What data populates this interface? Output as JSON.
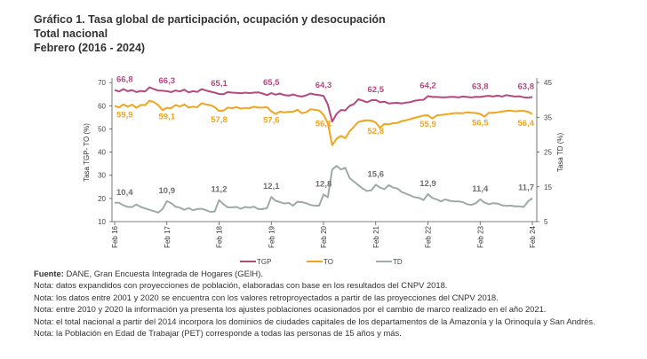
{
  "title": {
    "line1": "Gráfico 1. Tasa global de participación, ocupación y desocupación",
    "line2": "Total nacional",
    "line3": "Febrero (2016 - 2024)"
  },
  "chart_data": {
    "type": "line",
    "x_tick_labels": [
      "Feb 16",
      "Feb 17",
      "Feb 18",
      "Feb 19",
      "Feb 20",
      "Feb 21",
      "Feb 22",
      "Feb 23",
      "Feb 24"
    ],
    "x_start": "2016-02",
    "x_end": "2024-02",
    "frequency": "monthly",
    "ylabel": "Tasa TGP- TO (%)",
    "y2label": "Tasa TD (%)",
    "ylim": [
      10,
      72
    ],
    "yticks": [
      10,
      20,
      30,
      40,
      50,
      60,
      70
    ],
    "y2lim": [
      5,
      46.3
    ],
    "y2ticks": [
      5,
      15,
      25,
      35,
      45
    ],
    "grid": false,
    "legend": "bottom",
    "series": [
      {
        "name": "TGP",
        "axis": "left",
        "color": "#b5487f",
        "labels": [
          "66,8",
          "66,3",
          "65,1",
          "65,5",
          "64,3",
          "62,5",
          "64,2",
          "63,8",
          "63,8"
        ],
        "values": [
          66.8,
          66.2,
          67.2,
          66.3,
          66.8,
          65.9,
          66.4,
          66.2,
          68.0,
          67.2,
          66.6,
          66.5,
          66.3,
          65.9,
          66.6,
          66.2,
          67.0,
          65.8,
          66.3,
          66.0,
          67.2,
          66.6,
          66.1,
          65.7,
          65.1,
          65.0,
          65.9,
          65.7,
          65.6,
          65.4,
          65.7,
          65.5,
          65.7,
          65.8,
          65.3,
          64.6,
          65.5,
          64.8,
          65.3,
          64.6,
          64.4,
          64.9,
          64.3,
          64.0,
          64.5,
          65.3,
          64.9,
          64.6,
          64.3,
          60.5,
          53.2,
          56.5,
          58.2,
          58.0,
          60.0,
          60.8,
          62.8,
          62.2,
          61.5,
          62.4,
          62.5,
          61.5,
          61.8,
          61.0,
          61.2,
          61.3,
          61.0,
          61.4,
          61.6,
          62.2,
          62.5,
          62.6,
          64.2,
          63.8,
          63.9,
          63.7,
          63.7,
          63.8,
          63.9,
          63.6,
          64.0,
          63.8,
          63.6,
          63.9,
          63.8,
          64.1,
          64.3,
          64.0,
          64.4,
          64.0,
          64.6,
          64.3,
          64.0,
          64.1,
          63.7,
          63.5,
          63.8
        ]
      },
      {
        "name": "TO",
        "axis": "left",
        "color": "#f0a51c",
        "labels": [
          "59,9",
          "59,1",
          "57,8",
          "57,6",
          "56,1",
          "52,8",
          "55,9",
          "56,5",
          "56,4"
        ],
        "values": [
          59.9,
          59.3,
          60.6,
          59.6,
          60.5,
          59.1,
          60.4,
          60.3,
          62.2,
          61.6,
          60.3,
          58.2,
          59.1,
          59.0,
          60.3,
          59.7,
          60.6,
          59.2,
          59.6,
          59.4,
          61.1,
          60.6,
          60.3,
          59.4,
          57.8,
          57.9,
          59.2,
          59.0,
          59.4,
          58.8,
          59.1,
          59.0,
          59.6,
          59.2,
          59.2,
          59.4,
          57.6,
          56.5,
          57.5,
          57.2,
          57.4,
          57.4,
          58.3,
          56.8,
          57.2,
          58.5,
          58.3,
          58.0,
          56.1,
          52.5,
          43.0,
          45.8,
          47.0,
          46.0,
          49.0,
          51.0,
          53.0,
          53.5,
          53.8,
          53.6,
          52.8,
          50.5,
          52.2,
          52.0,
          52.5,
          52.6,
          53.4,
          53.8,
          54.3,
          54.8,
          55.3,
          55.8,
          55.9,
          54.5,
          55.8,
          56.0,
          56.3,
          56.5,
          56.8,
          56.9,
          56.8,
          57.2,
          57.0,
          56.9,
          56.5,
          55.3,
          57.0,
          57.0,
          57.2,
          57.5,
          57.8,
          57.9,
          57.6,
          57.8,
          57.8,
          57.4,
          56.4
        ]
      },
      {
        "name": "TD",
        "axis": "right",
        "color": "#9faaa6",
        "labels": [
          "10,4",
          "10,9",
          "11,2",
          "12,1",
          "12,8",
          "15,6",
          "12,9",
          "11,4",
          "11,7"
        ],
        "values": [
          10.4,
          10.4,
          9.7,
          9.2,
          9.2,
          9.9,
          9.2,
          8.8,
          8.4,
          8.0,
          7.6,
          8.6,
          10.9,
          10.3,
          9.3,
          9.0,
          8.4,
          8.9,
          8.3,
          8.6,
          8.7,
          8.3,
          7.8,
          7.9,
          11.2,
          10.0,
          9.1,
          9.1,
          9.2,
          8.7,
          9.2,
          9.0,
          9.3,
          8.6,
          8.6,
          8.9,
          12.1,
          11.0,
          10.6,
          10.2,
          10.4,
          9.6,
          10.7,
          10.6,
          10.3,
          9.8,
          9.6,
          9.6,
          12.8,
          12.0,
          20.0,
          21.0,
          20.0,
          20.5,
          17.5,
          16.5,
          15.5,
          14.5,
          13.8,
          14.0,
          15.6,
          14.8,
          14.3,
          15.5,
          14.8,
          14.5,
          13.5,
          13.0,
          12.5,
          12.0,
          11.8,
          11.2,
          12.9,
          11.8,
          11.4,
          10.8,
          11.4,
          11.0,
          10.8,
          10.8,
          10.6,
          10.0,
          9.8,
          10.3,
          11.4,
          10.5,
          10.0,
          10.3,
          10.2,
          9.7,
          9.5,
          9.6,
          9.4,
          9.4,
          9.2,
          10.8,
          11.7
        ]
      }
    ]
  },
  "notes": {
    "source_label": "Fuente:",
    "source_text": " DANE, Gran Encuesta Integrada de Hogares (GEIH).",
    "lines": [
      "Nota: datos expandidos con proyecciones de población, elaboradas con base en los resultados del CNPV 2018.",
      "Nota: los datos entre 2001 y 2020 se encuentra con los valores retroproyectados a partir de las proyecciones del CNPV 2018.",
      "Nota: entre 2010 y 2020 la información ya presenta los ajustes poblaciones ocasionados por el cambio de marco realizado en el año 2021.",
      "Nota: el total nacional a partir del 2014 incorpora los dominios de ciudades capitales de los departamentos de la Amazonía y la Orinoquía y San Andrés.",
      "Nota: la Población en Edad de Trabajar (PET) corresponde a todas las personas de 15 años y más."
    ]
  }
}
